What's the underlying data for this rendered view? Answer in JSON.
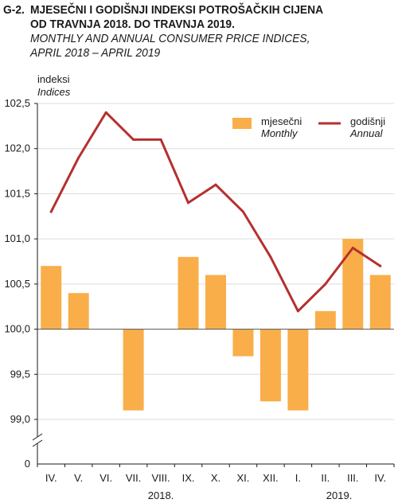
{
  "figure": {
    "code": "G-2.",
    "title_hr_line1": "MJESEČNI I GODIŠNJI INDEKSI POTROŠAČKIH CIJENA",
    "title_hr_line2": "OD TRAVNJA 2018. DO TRAVNJA 2019.",
    "title_en_line1": "MONTHLY AND ANNUAL CONSUMER PRICE INDICES,",
    "title_en_line2": "APRIL 2018 – APRIL 2019"
  },
  "colors": {
    "monthly": "#F9AE4A",
    "annual": "#B5302F",
    "grid": "#dcdcdc"
  },
  "chart_data": {
    "type": "bar",
    "ylabel_hr": "indeksi",
    "ylabel_en": "Indices",
    "ylim": [
      99.0,
      102.5
    ],
    "yticks": [
      "102,5",
      "102,0",
      "101,5",
      "101,0",
      "100,5",
      "100,0",
      "99,5",
      "99,0"
    ],
    "ytick_values": [
      102.5,
      102.0,
      101.5,
      101.0,
      100.5,
      100.0,
      99.5,
      99.0
    ],
    "y_zero_label": "0",
    "baseline": 100.0,
    "grid": "horizontal",
    "legend_position": "top-right",
    "categories": [
      "IV.",
      "V.",
      "VI.",
      "VII.",
      "VIII.",
      "IX.",
      "X.",
      "XI.",
      "XII.",
      "I.",
      "II.",
      "III.",
      "IV."
    ],
    "year_labels": [
      {
        "label": "2018.",
        "category_index": 4
      },
      {
        "label": "2019.",
        "category_index": 10.5
      }
    ],
    "series": [
      {
        "name": "mjesečni",
        "name_en": "Monthly",
        "type": "bar",
        "values": [
          100.7,
          100.4,
          100.0,
          99.1,
          100.0,
          100.8,
          100.6,
          99.7,
          99.2,
          99.1,
          100.2,
          101.0,
          100.6
        ]
      },
      {
        "name": "godišnji",
        "name_en": "Annual",
        "type": "line",
        "values": [
          101.3,
          101.9,
          102.4,
          102.1,
          102.1,
          101.4,
          101.6,
          101.3,
          100.8,
          100.2,
          100.5,
          100.9,
          100.7
        ]
      }
    ]
  }
}
